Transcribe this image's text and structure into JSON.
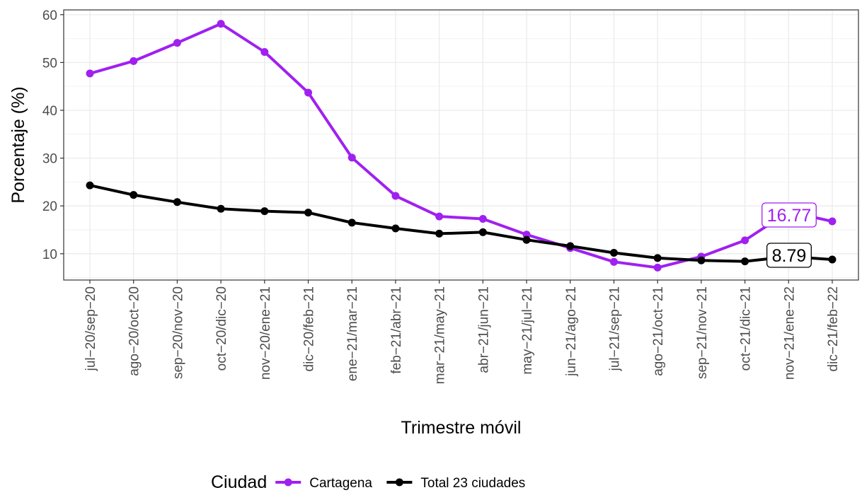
{
  "chart_data": {
    "type": "line",
    "title": "",
    "xlabel": "Trimestre móvil",
    "ylabel": "Porcentaje (%)",
    "ylim": [
      4.5,
      61
    ],
    "yticks": [
      10,
      20,
      30,
      40,
      50,
      60
    ],
    "grid": true,
    "legend_title": "Ciudad",
    "legend_position": "bottom",
    "categories": [
      "jul−20/sep−20",
      "ago−20/oct−20",
      "sep−20/nov−20",
      "oct−20/dic−20",
      "nov−20/ene−21",
      "dic−20/feb−21",
      "ene−21/mar−21",
      "feb−21/abr−21",
      "mar−21/may−21",
      "abr−21/jun−21",
      "may−21/jul−21",
      "jun−21/ago−21",
      "jul−21/sep−21",
      "ago−21/oct−21",
      "sep−21/nov−21",
      "oct−21/dic−21",
      "nov−21/ene−22",
      "dic−21/feb−22"
    ],
    "series": [
      {
        "name": "Cartagena",
        "color": "#a020f0",
        "values": [
          47.7,
          50.3,
          54.1,
          58.1,
          52.2,
          43.7,
          30.1,
          22.1,
          17.8,
          17.3,
          14.0,
          11.2,
          8.3,
          7.1,
          9.4,
          12.8,
          18.8,
          16.77
        ],
        "end_label": "16.77"
      },
      {
        "name": "Total 23 ciudades",
        "color": "#000000",
        "values": [
          24.3,
          22.3,
          20.8,
          19.4,
          18.9,
          18.6,
          16.5,
          15.3,
          14.2,
          14.5,
          12.9,
          11.6,
          10.2,
          9.1,
          8.6,
          8.4,
          9.4,
          8.79
        ],
        "end_label": "8.79"
      }
    ]
  }
}
